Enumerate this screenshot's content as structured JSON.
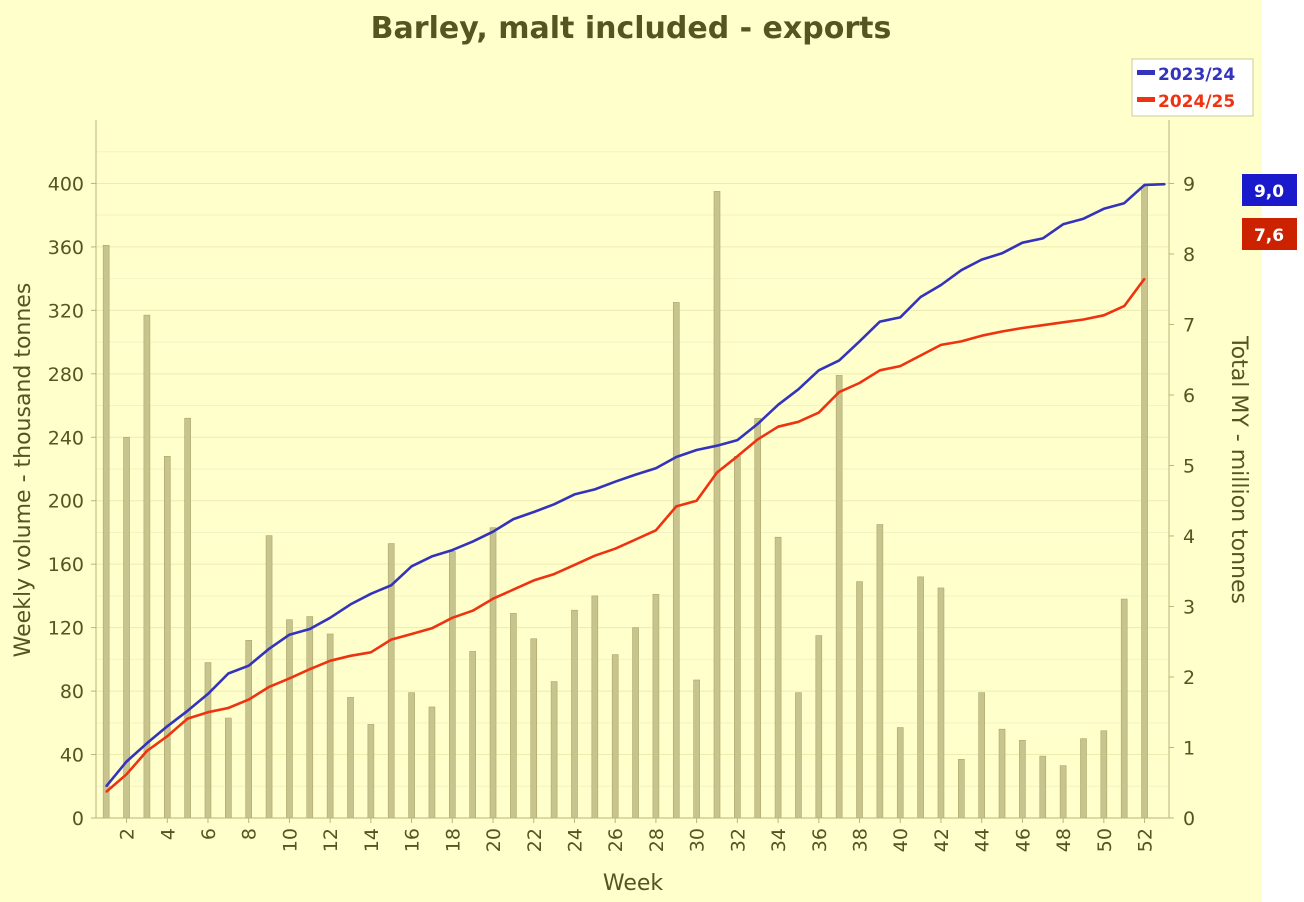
{
  "chart_data": {
    "type": "bar+line",
    "title": "Barley, malt included - exports",
    "xlabel": "Week",
    "ylabel_left": "Weekly volume - thousand tonnes",
    "ylabel_right": "Total MY - million tonnes",
    "ylim_left": [
      0,
      440
    ],
    "ylim_right": [
      0,
      9.9
    ],
    "yticks_left": [
      0,
      40,
      80,
      120,
      160,
      200,
      240,
      280,
      320,
      360,
      400
    ],
    "yticks_right": [
      0,
      1,
      2,
      3,
      4,
      5,
      6,
      7,
      8,
      9
    ],
    "xticks": [
      2,
      4,
      6,
      8,
      10,
      12,
      14,
      16,
      18,
      20,
      22,
      24,
      26,
      28,
      30,
      32,
      34,
      36,
      38,
      40,
      42,
      44,
      46,
      48,
      50,
      52
    ],
    "weeks": [
      1,
      2,
      3,
      4,
      5,
      6,
      7,
      8,
      9,
      10,
      11,
      12,
      13,
      14,
      15,
      16,
      17,
      18,
      19,
      20,
      21,
      22,
      23,
      24,
      25,
      26,
      27,
      28,
      29,
      30,
      31,
      32,
      33,
      34,
      35,
      36,
      37,
      38,
      39,
      40,
      41,
      42,
      43,
      44,
      45,
      46,
      47,
      48,
      49,
      50,
      51,
      52
    ],
    "bars": {
      "name": "Weekly volume",
      "color": "#c8c48e",
      "values": [
        361,
        240,
        317,
        228,
        252,
        98,
        63,
        112,
        178,
        125,
        127,
        116,
        76,
        59,
        173,
        79,
        70,
        168,
        105,
        183,
        129,
        113,
        86,
        131,
        140,
        103,
        120,
        141,
        325,
        87,
        395,
        228,
        252,
        177,
        79,
        115,
        279,
        149,
        185,
        57,
        152,
        145,
        37,
        79,
        56,
        49,
        39,
        33,
        50,
        55,
        138,
        398
      ]
    },
    "series": [
      {
        "name": "2023/24",
        "color": "#3333bb",
        "values": [
          0.45,
          0.8,
          1.06,
          1.3,
          1.52,
          1.76,
          2.05,
          2.16,
          2.4,
          2.6,
          2.68,
          2.84,
          3.03,
          3.18,
          3.3,
          3.57,
          3.71,
          3.8,
          3.92,
          4.06,
          4.24,
          4.34,
          4.45,
          4.59,
          4.66,
          4.77,
          4.87,
          4.96,
          5.12,
          5.22,
          5.28,
          5.36,
          5.59,
          5.86,
          6.08,
          6.35,
          6.49,
          6.76,
          7.04,
          7.1,
          7.39,
          7.56,
          7.77,
          7.92,
          8.01,
          8.16,
          8.22,
          8.42,
          8.5,
          8.64,
          8.72,
          8.98,
          8.99
        ],
        "x": [
          1,
          2,
          3,
          4,
          5,
          6,
          7,
          8,
          9,
          10,
          11,
          12,
          13,
          14,
          15,
          16,
          17,
          18,
          19,
          20,
          21,
          22,
          23,
          24,
          25,
          26,
          27,
          28,
          29,
          30,
          31,
          32,
          33,
          34,
          35,
          36,
          37,
          38,
          39,
          40,
          41,
          42,
          43,
          44,
          45,
          46,
          47,
          48,
          49,
          50,
          51,
          52,
          53
        ]
      },
      {
        "name": "2024/25",
        "color": "#ee3311",
        "values": [
          0.37,
          0.62,
          0.95,
          1.16,
          1.41,
          1.5,
          1.56,
          1.68,
          1.86,
          1.98,
          2.11,
          2.23,
          2.3,
          2.35,
          2.53,
          2.61,
          2.69,
          2.84,
          2.94,
          3.11,
          3.24,
          3.37,
          3.46,
          3.59,
          3.72,
          3.82,
          3.95,
          4.08,
          4.42,
          4.5,
          4.9,
          5.13,
          5.37,
          5.55,
          5.62,
          5.75,
          6.04,
          6.17,
          6.35,
          6.41,
          6.56,
          6.71,
          6.76,
          6.84,
          6.9,
          6.95,
          6.99,
          7.03,
          7.07,
          7.13,
          7.26,
          7.65
        ],
        "x": [
          1,
          2,
          3,
          4,
          5,
          6,
          7,
          8,
          9,
          10,
          11,
          12,
          13,
          14,
          15,
          16,
          17,
          18,
          19,
          20,
          21,
          22,
          23,
          24,
          25,
          26,
          27,
          28,
          29,
          30,
          31,
          32,
          33,
          34,
          35,
          36,
          37,
          38,
          39,
          40,
          41,
          42,
          43,
          44,
          45,
          46,
          47,
          48,
          49,
          50,
          51,
          52
        ]
      }
    ],
    "legend": [
      {
        "label": "2023/24",
        "color": "#3333bb"
      },
      {
        "label": "2024/25",
        "color": "#ee3311"
      }
    ],
    "end_badges": [
      {
        "label": "9,0",
        "color": "#1a1acc"
      },
      {
        "label": "7,6",
        "color": "#cc2200"
      }
    ],
    "grid": true,
    "legend_position": "top-right"
  }
}
